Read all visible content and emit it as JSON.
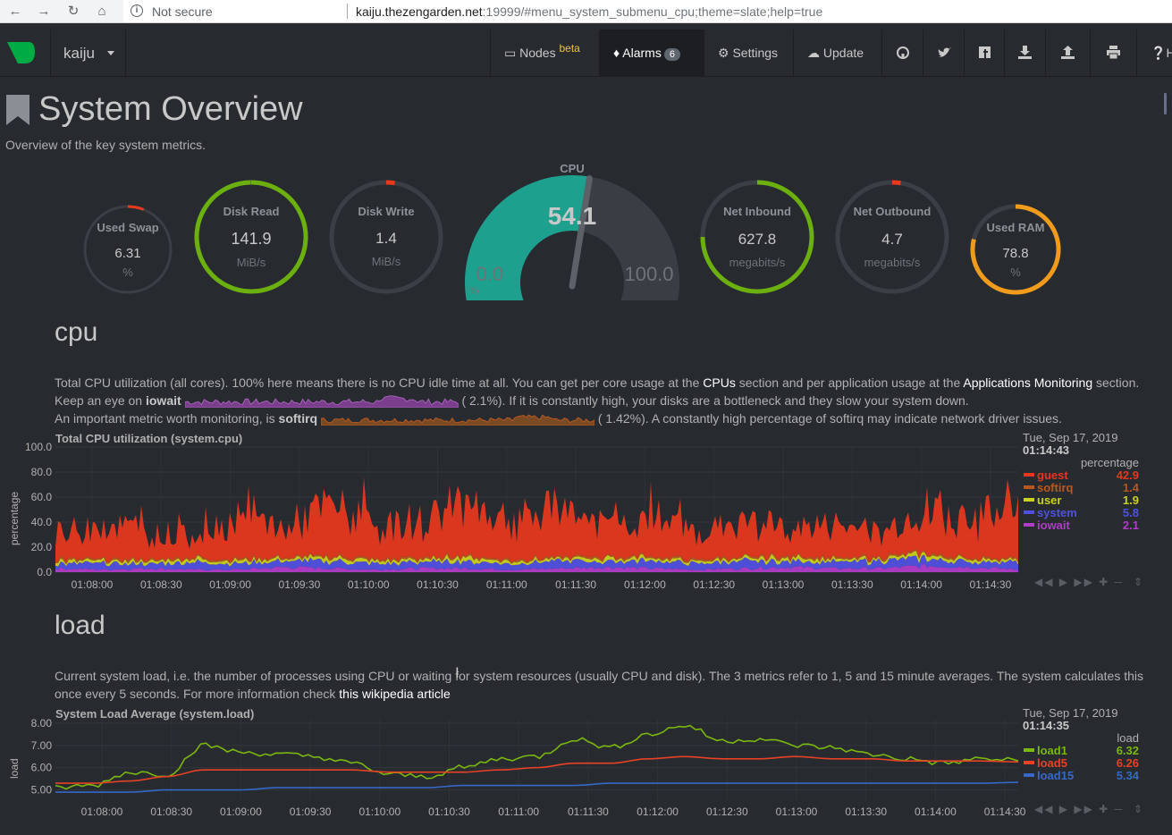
{
  "browser": {
    "security": "Not secure",
    "url_host": "kaiju.thezengarden.net",
    "url_rest": ":19999/#menu_system_submenu_cpu;theme=slate;help=true"
  },
  "nav": {
    "host": "kaiju",
    "nodes": "Nodes",
    "beta": "beta",
    "alarms": "Alarms",
    "alarms_count": "6",
    "settings": "Settings",
    "update": "Update",
    "help": "H"
  },
  "page": {
    "title": "System Overview",
    "subtitle": "Overview of the key system metrics."
  },
  "gauges": {
    "used_swap": {
      "title": "Used Swap",
      "value": "6.31",
      "units": "%",
      "fraction": 0.06
    },
    "disk_read": {
      "title": "Disk Read",
      "value": "141.9",
      "units": "MiB/s",
      "fraction": 1.0
    },
    "disk_write": {
      "title": "Disk Write",
      "value": "1.4",
      "units": "MiB/s",
      "fraction": 0.02
    },
    "cpu": {
      "title": "CPU",
      "value": "54.1",
      "min": "0.0",
      "max": "100.0",
      "units": "%",
      "fraction": 0.541
    },
    "net_inbound": {
      "title": "Net Inbound",
      "value": "627.8",
      "units": "megabits/s",
      "fraction": 0.75
    },
    "net_outbound": {
      "title": "Net Outbound",
      "value": "4.7",
      "units": "megabits/s",
      "fraction": 0.02
    },
    "used_ram": {
      "title": "Used RAM",
      "value": "78.8",
      "units": "%",
      "fraction": 0.788
    }
  },
  "cpu_section": {
    "heading": "cpu",
    "line1_a": "Total CPU utilization (all cores). 100% here means there is no CPU idle time at all. You can get per core usage at the ",
    "line1_link1": "CPUs",
    "line1_b": " section and per application usage at the ",
    "line1_link2": "Applications Monitoring",
    "line1_c": " section.",
    "line2_a": "Keep an eye on ",
    "line2_b": "iowait",
    "line2_c": "(        2.1%). If it is constantly high, your disks are a bottleneck and they slow your system down.",
    "line3_a": "An important metric worth monitoring, is ",
    "line3_b": "softirq",
    "line3_c": "(       1.42%). A constantly high percentage of softirq may indicate network driver issues."
  },
  "load_section": {
    "heading": "load",
    "line1": "Current system load, i.e. the number of processes using CPU or waiting for system resources (usually CPU and disk). The 3 metrics refer to 1, 5 and 15 minute averages. The system calculates this",
    "line2_a": "once every 5 seconds. For more information check ",
    "line2_link": "this wikipedia article"
  },
  "colors": {
    "guest": "#e5371e",
    "softirq": "#b8581f",
    "user": "#c9d21e",
    "system": "#5050e0",
    "iowait": "#b03cc8",
    "load1": "#7ab70f",
    "load5": "#e84125",
    "load15": "#3668c8",
    "gauge_green": "#6bb00e",
    "gauge_red": "#e8391c",
    "gauge_orange": "#f09b1c",
    "gauge_teal": "#1ea08f"
  },
  "cpu_chart": {
    "title": "Total CPU utilization (system.cpu)",
    "ylabel": "percentage",
    "date": "Tue, Sep 17, 2019",
    "time": "01:14:43",
    "units": "percentage",
    "legend": [
      {
        "name": "guest",
        "value": "42.9"
      },
      {
        "name": "softirq",
        "value": "1.4"
      },
      {
        "name": "user",
        "value": "1.9"
      },
      {
        "name": "system",
        "value": "5.8"
      },
      {
        "name": "iowait",
        "value": "2.1"
      }
    ]
  },
  "load_chart": {
    "title": "System Load Average (system.load)",
    "ylabel": "load",
    "date": "Tue, Sep 17, 2019",
    "time": "01:14:35",
    "units": "load",
    "legend": [
      {
        "name": "load1",
        "value": "6.32"
      },
      {
        "name": "load5",
        "value": "6.26"
      },
      {
        "name": "load15",
        "value": "5.34"
      }
    ]
  },
  "chart_data": [
    {
      "type": "area",
      "title": "Total CPU utilization (system.cpu)",
      "ylabel": "percentage",
      "ylim": [
        0,
        100
      ],
      "yticks": [
        "100.0",
        "80.0",
        "60.0",
        "40.0",
        "20.0",
        "0.0"
      ],
      "xticks": [
        "01:08:00",
        "01:08:30",
        "01:09:00",
        "01:09:30",
        "01:10:00",
        "01:10:30",
        "01:11:00",
        "01:11:30",
        "01:12:00",
        "01:12:30",
        "01:13:00",
        "01:13:30",
        "01:14:00",
        "01:14:30"
      ],
      "x": [
        "01:07:53",
        "01:08:10",
        "01:08:30",
        "01:08:50",
        "01:09:10",
        "01:09:30",
        "01:09:50",
        "01:10:10",
        "01:10:30",
        "01:10:50",
        "01:11:10",
        "01:11:30",
        "01:11:50",
        "01:12:10",
        "01:12:30",
        "01:12:50",
        "01:13:10",
        "01:13:30",
        "01:13:50",
        "01:14:10",
        "01:14:30",
        "01:14:43"
      ],
      "series": [
        {
          "name": "iowait",
          "values": [
            3,
            2,
            3,
            2,
            2,
            4,
            3,
            2,
            3,
            3,
            2,
            3,
            4,
            3,
            2,
            3,
            4,
            3,
            3,
            5,
            4,
            2.1
          ]
        },
        {
          "name": "system",
          "values": [
            4,
            5,
            4,
            6,
            5,
            5,
            6,
            5,
            5,
            6,
            5,
            6,
            5,
            6,
            5,
            6,
            5,
            5,
            6,
            6,
            5,
            5.8
          ]
        },
        {
          "name": "user",
          "values": [
            2,
            2,
            2,
            3,
            2,
            2,
            3,
            2,
            2,
            3,
            2,
            2,
            3,
            2,
            2,
            2,
            3,
            2,
            2,
            3,
            2,
            1.9
          ]
        },
        {
          "name": "softirq",
          "values": [
            1.5,
            1.4,
            1.5,
            1.4,
            1.5,
            1.4,
            1.5,
            1.4,
            1.5,
            1.4,
            1.5,
            1.4,
            1.5,
            1.4,
            1.5,
            1.4,
            1.5,
            1.4,
            1.5,
            1.4,
            1.5,
            1.4
          ]
        },
        {
          "name": "guest",
          "values": [
            15,
            30,
            20,
            18,
            35,
            22,
            40,
            25,
            28,
            45,
            30,
            38,
            25,
            32,
            20,
            28,
            22,
            26,
            18,
            35,
            28,
            42.9
          ]
        }
      ]
    },
    {
      "type": "line",
      "title": "System Load Average (system.load)",
      "ylabel": "load",
      "ylim": [
        4.5,
        8.2
      ],
      "yticks": [
        "8.00",
        "7.00",
        "6.00",
        "5.00"
      ],
      "xticks": [
        "01:08:00",
        "01:08:30",
        "01:09:00",
        "01:09:30",
        "01:10:00",
        "01:10:30",
        "01:11:00",
        "01:11:30",
        "01:12:00",
        "01:12:30",
        "01:13:00",
        "01:13:30",
        "01:14:00",
        "01:14:30"
      ],
      "x": [
        "01:07:53",
        "01:08:10",
        "01:08:30",
        "01:08:45",
        "01:09:00",
        "01:09:15",
        "01:09:30",
        "01:09:45",
        "01:10:00",
        "01:10:15",
        "01:10:30",
        "01:10:45",
        "01:11:00",
        "01:11:15",
        "01:11:30",
        "01:11:45",
        "01:12:00",
        "01:12:15",
        "01:12:30",
        "01:12:45",
        "01:13:00",
        "01:13:15",
        "01:13:30",
        "01:13:45",
        "01:14:00",
        "01:14:15",
        "01:14:35"
      ],
      "series": [
        {
          "name": "load1",
          "values": [
            5.1,
            5.2,
            5.8,
            5.7,
            7.0,
            6.7,
            6.6,
            6.5,
            6.2,
            5.7,
            5.6,
            6.0,
            6.4,
            6.5,
            7.3,
            6.9,
            7.5,
            7.9,
            7.2,
            7.3,
            7.0,
            6.9,
            6.6,
            6.4,
            6.2,
            6.4,
            6.32
          ]
        },
        {
          "name": "load5",
          "values": [
            5.3,
            5.3,
            5.4,
            5.6,
            5.9,
            5.9,
            5.9,
            5.9,
            5.9,
            5.8,
            5.8,
            5.8,
            5.9,
            6.0,
            6.2,
            6.2,
            6.4,
            6.5,
            6.4,
            6.4,
            6.5,
            6.4,
            6.4,
            6.3,
            6.3,
            6.3,
            6.26
          ]
        },
        {
          "name": "load15",
          "values": [
            4.9,
            4.9,
            4.9,
            5.0,
            5.0,
            5.0,
            5.1,
            5.1,
            5.1,
            5.1,
            5.1,
            5.2,
            5.2,
            5.2,
            5.2,
            5.3,
            5.3,
            5.3,
            5.3,
            5.3,
            5.3,
            5.3,
            5.3,
            5.3,
            5.3,
            5.3,
            5.34
          ]
        }
      ]
    }
  ]
}
